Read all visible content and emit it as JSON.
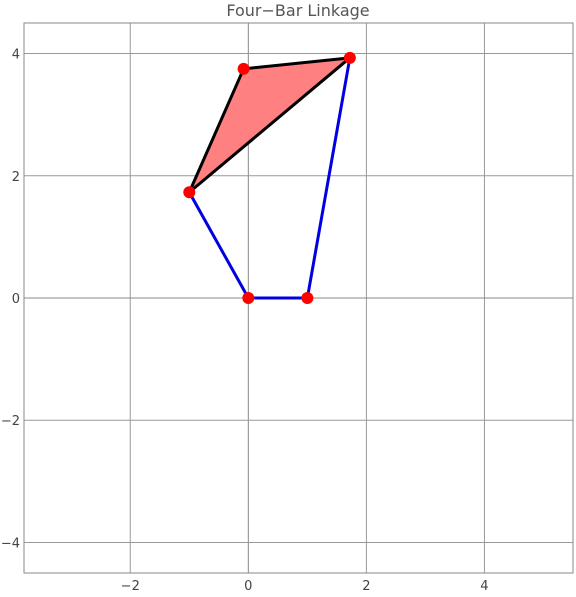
{
  "chart_data": {
    "type": "diagram",
    "title": "Four−Bar Linkage",
    "xlim": [
      -3.8,
      5.5
    ],
    "ylim": [
      -4.5,
      4.5
    ],
    "x_ticks": [
      -2,
      0,
      2,
      4
    ],
    "y_ticks": [
      -4,
      -2,
      0,
      2,
      4
    ],
    "x_tick_labels": [
      "−2",
      "0",
      "2",
      "4"
    ],
    "y_tick_labels": [
      "−4",
      "−2",
      "0",
      "2",
      "4"
    ],
    "grid": true,
    "links": {
      "color": "#0000e0",
      "segments": [
        [
          [
            0,
            0
          ],
          [
            1,
            0
          ]
        ],
        [
          [
            0,
            0
          ],
          [
            -1,
            1.73
          ]
        ],
        [
          [
            1,
            0
          ],
          [
            1.72,
            3.93
          ]
        ]
      ]
    },
    "coupler_triangle": {
      "fill": "#ff8080",
      "stroke": "#000000",
      "points": [
        [
          -1,
          1.73
        ],
        [
          -0.08,
          3.75
        ],
        [
          1.72,
          3.93
        ]
      ]
    },
    "joints": {
      "color": "#ff0000",
      "points": [
        [
          0,
          0
        ],
        [
          1,
          0
        ],
        [
          -1,
          1.73
        ],
        [
          -0.08,
          3.75
        ],
        [
          1.72,
          3.93
        ]
      ]
    }
  }
}
